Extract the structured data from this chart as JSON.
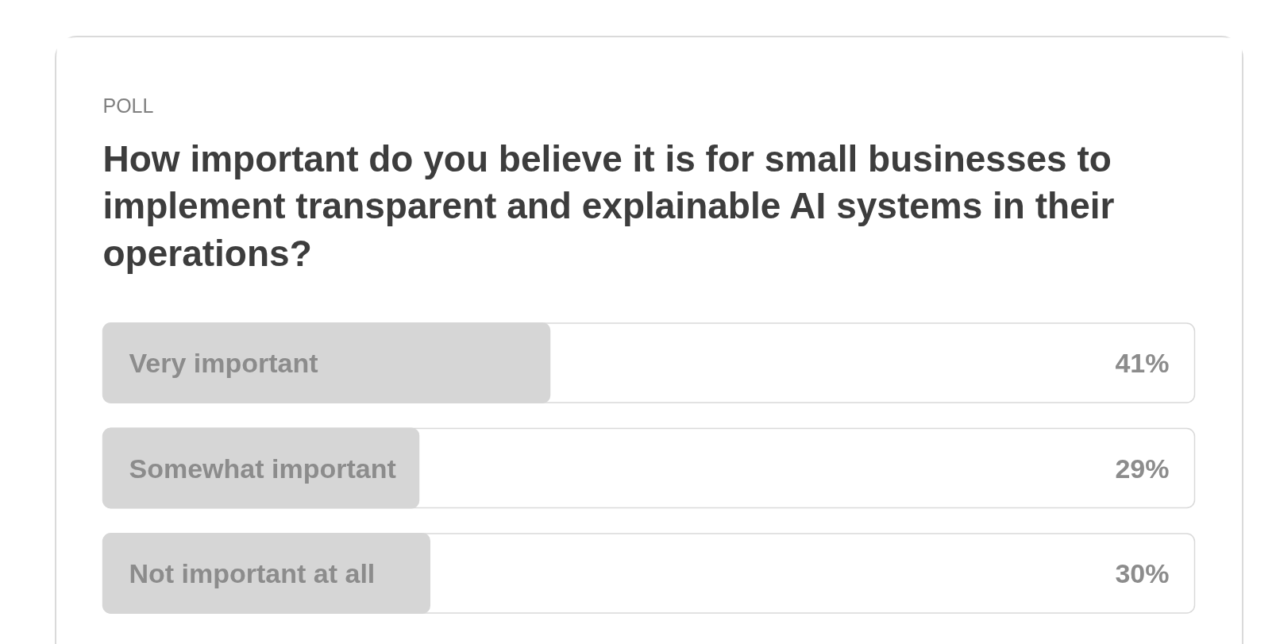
{
  "chart_data": {
    "type": "bar",
    "orientation": "horizontal",
    "subtitle": "POLL",
    "title": "How important do you believe it is for small businesses to implement transparent and explainable AI systems in their operations?",
    "categories": [
      "Very important",
      "Somewhat important",
      "Not important at all"
    ],
    "values": [
      41,
      29,
      30
    ],
    "value_labels": [
      "41%",
      "29%",
      "30%"
    ],
    "color": "#d6d6d6",
    "xlim": [
      0,
      100
    ],
    "tick_labels": false
  }
}
